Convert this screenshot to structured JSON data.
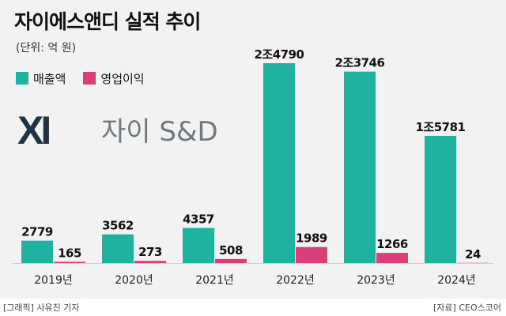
{
  "header": {
    "title": "자이에스앤디 실적 추이",
    "unit": "(단위: 억 원)"
  },
  "logo": {
    "mark": "XI",
    "text": "자이 S&D"
  },
  "footer": {
    "credit": "[그래픽] 사유진 기자",
    "source": "[자료] CEO스코어"
  },
  "colors": {
    "revenue": "#20b2a0",
    "operating_profit": "#d9407a",
    "logo_mark": "#1f3345",
    "logo_text": "#6f7a7f"
  },
  "chart_data": {
    "type": "bar",
    "categories": [
      "2019년",
      "2020년",
      "2021년",
      "2022년",
      "2023년",
      "2024년"
    ],
    "series": [
      {
        "name": "매출액",
        "values": [
          2779,
          3562,
          4357,
          24790,
          23746,
          15781
        ],
        "labels": [
          "2779",
          "3562",
          "4357",
          "2조4790",
          "2조3746",
          "1조5781"
        ]
      },
      {
        "name": "영업이익",
        "values": [
          165,
          273,
          508,
          1989,
          1266,
          24
        ],
        "labels": [
          "165",
          "273",
          "508",
          "1989",
          "1266",
          "24"
        ]
      }
    ]
  }
}
